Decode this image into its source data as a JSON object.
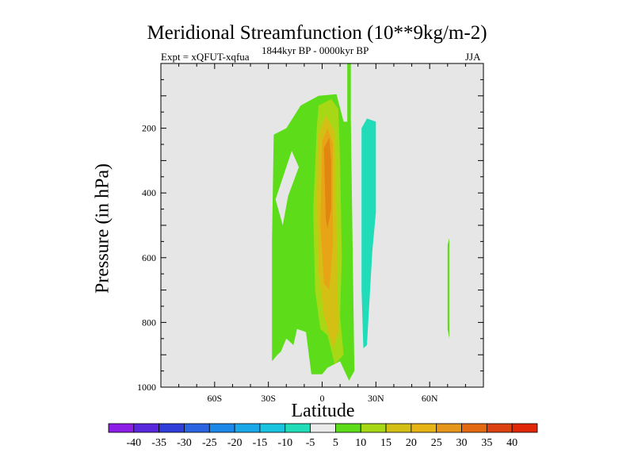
{
  "chart_data": {
    "type": "heatmap",
    "title": "Meridional Streamfunction (10**9kg/m-2)",
    "left_subtitle": "Expt = xQFUT-xqfua",
    "center_subtitle": "1844kyr BP - 0000kyr BP",
    "right_subtitle": "JJA",
    "xlabel": "Latitude",
    "ylabel": "Pressure (in hPa)",
    "xlim": [
      -90,
      90
    ],
    "ylim": [
      1000,
      0
    ],
    "x_ticks": [
      {
        "value": -60,
        "label": "60S"
      },
      {
        "value": -30,
        "label": "30S"
      },
      {
        "value": 0,
        "label": "0"
      },
      {
        "value": 30,
        "label": "30N"
      },
      {
        "value": 60,
        "label": "60N"
      }
    ],
    "y_ticks": [
      {
        "value": 200,
        "label": "200"
      },
      {
        "value": 400,
        "label": "400"
      },
      {
        "value": 600,
        "label": "600"
      },
      {
        "value": 800,
        "label": "800"
      },
      {
        "value": 1000,
        "label": "1000"
      }
    ],
    "background_color": "#e6e6e6",
    "contour_regions": [
      {
        "name": "region-sh-5-10",
        "level": 5,
        "color": "#5ddc1a",
        "points": [
          [
            -28,
            920
          ],
          [
            -28,
            550
          ],
          [
            -27,
            220
          ],
          [
            -20,
            200
          ],
          [
            -12,
            130
          ],
          [
            -2,
            100
          ],
          [
            8,
            95
          ],
          [
            12,
            180
          ],
          [
            16,
            180
          ],
          [
            18,
            950
          ],
          [
            15,
            980
          ],
          [
            10,
            920
          ],
          [
            3,
            940
          ],
          [
            0,
            960
          ],
          [
            -6,
            960
          ],
          [
            -9,
            830
          ],
          [
            -14,
            820
          ],
          [
            -16,
            870
          ],
          [
            -20,
            850
          ],
          [
            -23,
            890
          ],
          [
            -25,
            900
          ]
        ]
      },
      {
        "name": "hole-sh",
        "level": 0,
        "color": "#e6e6e6",
        "points": [
          [
            -26,
            420
          ],
          [
            -17,
            270
          ],
          [
            -13,
            320
          ],
          [
            -19,
            410
          ],
          [
            -22,
            500
          ]
        ]
      },
      {
        "name": "region-eq-10-15",
        "level": 10,
        "color": "#a6d816",
        "points": [
          [
            -3,
            200
          ],
          [
            -2,
            130
          ],
          [
            5,
            110
          ],
          [
            9,
            140
          ],
          [
            10,
            300
          ],
          [
            11,
            600
          ],
          [
            10,
            780
          ],
          [
            12,
            900
          ],
          [
            7,
            930
          ],
          [
            3,
            840
          ],
          [
            -1,
            820
          ],
          [
            -4,
            700
          ],
          [
            -5,
            450
          ]
        ]
      },
      {
        "name": "region-eq-15-20",
        "level": 15,
        "color": "#d4c014",
        "points": [
          [
            -2,
            220
          ],
          [
            2,
            160
          ],
          [
            7,
            210
          ],
          [
            8,
            480
          ],
          [
            9,
            830
          ],
          [
            6,
            880
          ],
          [
            1,
            780
          ],
          [
            -2,
            650
          ],
          [
            -3,
            420
          ]
        ]
      },
      {
        "name": "region-eq-20-25",
        "level": 20,
        "color": "#e6a416",
        "points": [
          [
            0,
            240
          ],
          [
            3,
            200
          ],
          [
            6,
            250
          ],
          [
            6,
            560
          ],
          [
            4,
            700
          ],
          [
            1,
            680
          ],
          [
            -1,
            500
          ]
        ]
      },
      {
        "name": "region-eq-25-30",
        "level": 25,
        "color": "#e28612",
        "points": [
          [
            1,
            260
          ],
          [
            4,
            230
          ],
          [
            5,
            300
          ],
          [
            5,
            450
          ],
          [
            3,
            510
          ],
          [
            2,
            480
          ]
        ]
      },
      {
        "name": "region-nh-column",
        "level": 5,
        "color": "#5ddc1a",
        "points": [
          [
            14,
            0
          ],
          [
            16,
            0
          ],
          [
            16,
            220
          ],
          [
            14,
            220
          ]
        ]
      },
      {
        "name": "region-nh-neg-5-10",
        "level": -5,
        "color": "#20dcb8",
        "points": [
          [
            22,
            200
          ],
          [
            25,
            170
          ],
          [
            30,
            180
          ],
          [
            30,
            460
          ],
          [
            28,
            580
          ],
          [
            25,
            870
          ],
          [
            23,
            880
          ],
          [
            22,
            700
          ],
          [
            22,
            400
          ]
        ]
      },
      {
        "name": "region-nh-60-5-10",
        "level": 5,
        "color": "#5ddc1a",
        "points": [
          [
            70,
            560
          ],
          [
            71,
            540
          ],
          [
            71,
            850
          ],
          [
            70,
            820
          ]
        ]
      }
    ],
    "colorbar": {
      "labels": [
        "-40",
        "-35",
        "-30",
        "-25",
        "-20",
        "-15",
        "-10",
        "-5",
        "5",
        "10",
        "15",
        "20",
        "25",
        "30",
        "35",
        "40"
      ],
      "colors": [
        "#8c1ee6",
        "#5a28dc",
        "#2f3ed8",
        "#2a64e0",
        "#1e88e8",
        "#1aa8e8",
        "#18c4e0",
        "#20dcb8",
        "#ebebeb",
        "#5ddc1a",
        "#a6d816",
        "#d4c014",
        "#e6b414",
        "#e6961a",
        "#e46a12",
        "#dc4210",
        "#e02808"
      ]
    }
  }
}
